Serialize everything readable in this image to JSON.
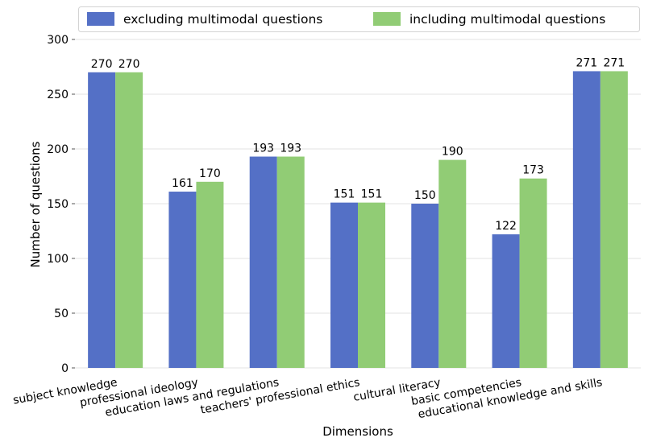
{
  "chart_data": {
    "type": "bar",
    "categories": [
      "subject knowledge",
      "professional ideology",
      "education laws and regulations",
      "teachers' professional ethics",
      "cultural literacy",
      "basic competencies",
      "educational knowledge and skills"
    ],
    "series": [
      {
        "name": "excluding multimodal questions",
        "color": "#5470c6",
        "values": [
          270,
          161,
          193,
          151,
          150,
          122,
          271
        ]
      },
      {
        "name": "including multimodal questions",
        "color": "#91cc75",
        "values": [
          270,
          170,
          193,
          151,
          190,
          173,
          271
        ]
      }
    ],
    "xlabel": "Dimensions",
    "ylabel": "Number of questions",
    "ylim": [
      0,
      300
    ],
    "yticks": [
      0,
      50,
      100,
      150,
      200,
      250,
      300
    ],
    "grid": true,
    "legend_position": "top",
    "xtick_rotation_deg": -10
  }
}
